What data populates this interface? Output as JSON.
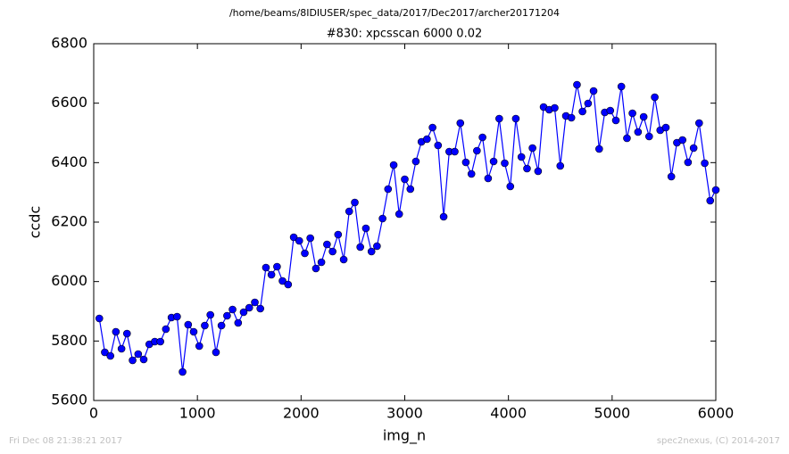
{
  "chart_data": {
    "type": "line",
    "title": "/home/beams/8IDIUSER/spec_data/2017/Dec2017/archer20171204",
    "subtitle": "#830: xpcsscan 6000 0.02",
    "x_label": "img_n",
    "y_label": "ccdc",
    "footer_left": "Fri Dec 08 21:38:21 2017",
    "footer_right": "spec2nexus, (C) 2014-2017",
    "x": [
      54,
      107,
      161,
      214,
      268,
      321,
      375,
      429,
      482,
      536,
      589,
      643,
      696,
      750,
      804,
      857,
      911,
      964,
      1018,
      1071,
      1125,
      1179,
      1232,
      1286,
      1339,
      1393,
      1446,
      1500,
      1554,
      1607,
      1661,
      1714,
      1768,
      1821,
      1875,
      1929,
      1982,
      2036,
      2089,
      2143,
      2196,
      2250,
      2304,
      2357,
      2411,
      2464,
      2518,
      2571,
      2625,
      2679,
      2732,
      2786,
      2839,
      2893,
      2946,
      3000,
      3054,
      3107,
      3161,
      3214,
      3268,
      3321,
      3375,
      3429,
      3482,
      3536,
      3589,
      3643,
      3696,
      3750,
      3804,
      3857,
      3911,
      3964,
      4018,
      4071,
      4125,
      4179,
      4232,
      4286,
      4339,
      4393,
      4446,
      4500,
      4554,
      4607,
      4661,
      4714,
      4768,
      4821,
      4875,
      4929,
      4982,
      5036,
      5089,
      5143,
      5196,
      5250,
      5304,
      5357,
      5411,
      5464,
      5518,
      5571,
      5625,
      5679,
      5732,
      5786,
      5839,
      5893,
      5946,
      6000
    ],
    "series": [
      {
        "color": "#0000ff",
        "values": [
          5876,
          5762,
          5750,
          5831,
          5774,
          5825,
          5735,
          5756,
          5738,
          5789,
          5798,
          5798,
          5840,
          5879,
          5882,
          5696,
          5855,
          5831,
          5783,
          5852,
          5888,
          5762,
          5852,
          5885,
          5906,
          5861,
          5897,
          5912,
          5930,
          5909,
          6047,
          6023,
          6050,
          6002,
          5990,
          6149,
          6137,
          6095,
          6146,
          6044,
          6065,
          6125,
          6101,
          6158,
          6074,
          6236,
          6266,
          6116,
          6179,
          6101,
          6119,
          6212,
          6311,
          6392,
          6227,
          6344,
          6311,
          6404,
          6470,
          6479,
          6518,
          6458,
          6218,
          6437,
          6437,
          6533,
          6401,
          6362,
          6440,
          6485,
          6347,
          6404,
          6548,
          6398,
          6320,
          6548,
          6419,
          6380,
          6449,
          6371,
          6587,
          6578,
          6584,
          6389,
          6557,
          6551,
          6662,
          6572,
          6599,
          6641,
          6446,
          6569,
          6575,
          6542,
          6656,
          6482,
          6566,
          6503,
          6554,
          6488,
          6620,
          6509,
          6518,
          6353,
          6467,
          6476,
          6401,
          6449,
          6533,
          6398,
          6272,
          6308
        ]
      }
    ],
    "xlim": [
      0,
      6000
    ],
    "xticks": [
      0,
      1000,
      2000,
      3000,
      4000,
      5000,
      6000
    ],
    "ylim": [
      5600,
      6800
    ],
    "yticks": [
      5600,
      5800,
      6000,
      6200,
      6400,
      6600,
      6800
    ]
  }
}
